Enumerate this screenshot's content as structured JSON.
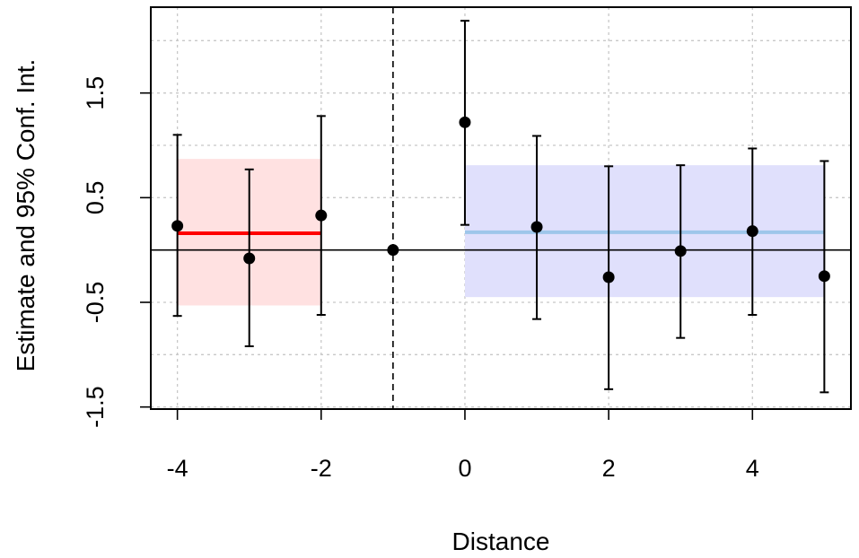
{
  "chart_data": {
    "type": "scatter",
    "title": "",
    "xlabel": "Distance",
    "ylabel": "Estimate and 95% Conf. Int.",
    "xlim": [
      -4.37,
      5.37
    ],
    "ylim": [
      -1.52,
      2.32
    ],
    "x_ticks": [
      -4,
      -2,
      0,
      2,
      4
    ],
    "x_tick_labels": [
      "-4",
      "-2",
      "0",
      "2",
      "4"
    ],
    "y_ticks": [
      -1.5,
      -0.5,
      0.5,
      1.5
    ],
    "y_tick_labels": [
      "-1.5",
      "-0.5",
      "0.5",
      "1.5"
    ],
    "y_grid": [
      -1.5,
      -1.0,
      -0.5,
      0.0,
      0.5,
      1.0,
      1.5,
      2.0
    ],
    "grid": true,
    "points": [
      {
        "x": -4,
        "y": 0.23,
        "lower": -0.63,
        "upper": 1.1
      },
      {
        "x": -3,
        "y": -0.08,
        "lower": -0.92,
        "upper": 0.77
      },
      {
        "x": -2,
        "y": 0.33,
        "lower": -0.62,
        "upper": 1.28
      },
      {
        "x": -1,
        "y": 0.0,
        "lower": null,
        "upper": null
      },
      {
        "x": 0,
        "y": 1.22,
        "lower": 0.24,
        "upper": 2.19
      },
      {
        "x": 1,
        "y": 0.22,
        "lower": -0.66,
        "upper": 1.09
      },
      {
        "x": 2,
        "y": -0.26,
        "lower": -1.33,
        "upper": 0.8
      },
      {
        "x": 3,
        "y": -0.01,
        "lower": -0.84,
        "upper": 0.81
      },
      {
        "x": 4,
        "y": 0.18,
        "lower": -0.62,
        "upper": 0.97
      },
      {
        "x": 5,
        "y": -0.25,
        "lower": -1.36,
        "upper": 0.85
      }
    ],
    "reference_lines": {
      "horizontal_y": 0.0,
      "vertical_dashed_x": -1
    },
    "pre_period": {
      "x_start": -4,
      "x_end": -2,
      "mean": 0.16,
      "band_lower": -0.53,
      "band_upper": 0.87,
      "line_color": "#ff0000",
      "band_color": "#ffe1e1"
    },
    "post_period": {
      "x_start": 0,
      "x_end": 5,
      "mean": 0.17,
      "band_lower": -0.45,
      "band_upper": 0.81,
      "line_color": "#9ec6ea",
      "band_color": "#e0e0fc"
    }
  }
}
